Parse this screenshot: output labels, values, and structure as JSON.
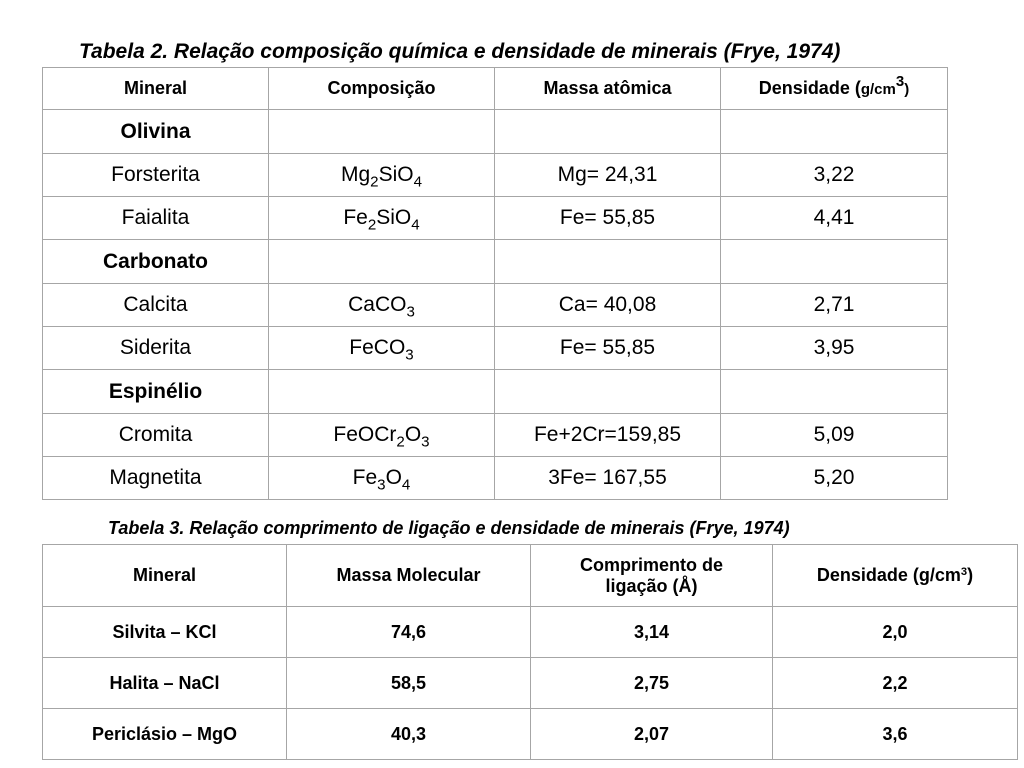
{
  "table2": {
    "caption": "Tabela 2. Relação composição química e densidade de minerais (Frye, 1974)",
    "headers": {
      "mineral": "Mineral",
      "composicao": "Composição",
      "massa": "Massa atômica",
      "densidade": "Densidade (",
      "densidade_unit": "g/cm",
      "densidade_exp": "3",
      "densidade_close": ")"
    },
    "groups": [
      {
        "name": "Olivina",
        "rows": [
          {
            "mineral": "Forsterita",
            "formula": [
              [
                "Mg",
                "2"
              ],
              [
                "SiO",
                "4"
              ]
            ],
            "massa": "Mg= 24,31",
            "densidade": "3,22"
          },
          {
            "mineral": "Faialita",
            "formula": [
              [
                "Fe",
                "2"
              ],
              [
                "SiO",
                "4"
              ]
            ],
            "massa": "Fe= 55,85",
            "densidade": "4,41"
          }
        ]
      },
      {
        "name": "Carbonato",
        "rows": [
          {
            "mineral": "Calcita",
            "formula": [
              [
                "CaCO",
                "3"
              ]
            ],
            "massa": "Ca= 40,08",
            "densidade": "2,71"
          },
          {
            "mineral": "Siderita",
            "formula": [
              [
                "FeCO",
                "3"
              ]
            ],
            "massa": "Fe= 55,85",
            "densidade": "3,95"
          }
        ]
      },
      {
        "name": "Espinélio",
        "rows": [
          {
            "mineral": "Cromita",
            "formula": [
              [
                "FeOCr",
                "2"
              ],
              [
                "O",
                "3"
              ]
            ],
            "massa": "Fe+2Cr=159,85",
            "densidade": "5,09"
          },
          {
            "mineral": "Magnetita",
            "formula": [
              [
                "Fe",
                "3"
              ],
              [
                "O",
                "4"
              ]
            ],
            "massa": "3Fe= 167,55",
            "densidade": "5,20"
          }
        ]
      }
    ]
  },
  "table3": {
    "caption": "Tabela 3. Relação comprimento de ligação e densidade de minerais (Frye, 1974)",
    "headers": {
      "mineral": "Mineral",
      "massa": "Massa Molecular",
      "comprimento_line1": "Comprimento de",
      "comprimento_line2": "ligação (Å)",
      "densidade": "Densidade (g/cm",
      "densidade_exp": "3",
      "densidade_close": ")"
    },
    "rows": [
      {
        "mineral": "Silvita – KCl",
        "massa": "74,6",
        "comprimento": "3,14",
        "densidade": "2,0"
      },
      {
        "mineral": "Halita – NaCl",
        "massa": "58,5",
        "comprimento": "2,75",
        "densidade": "2,2"
      },
      {
        "mineral": "Periclásio – MgO",
        "massa": "40,3",
        "comprimento": "2,07",
        "densidade": "3,6"
      }
    ]
  }
}
